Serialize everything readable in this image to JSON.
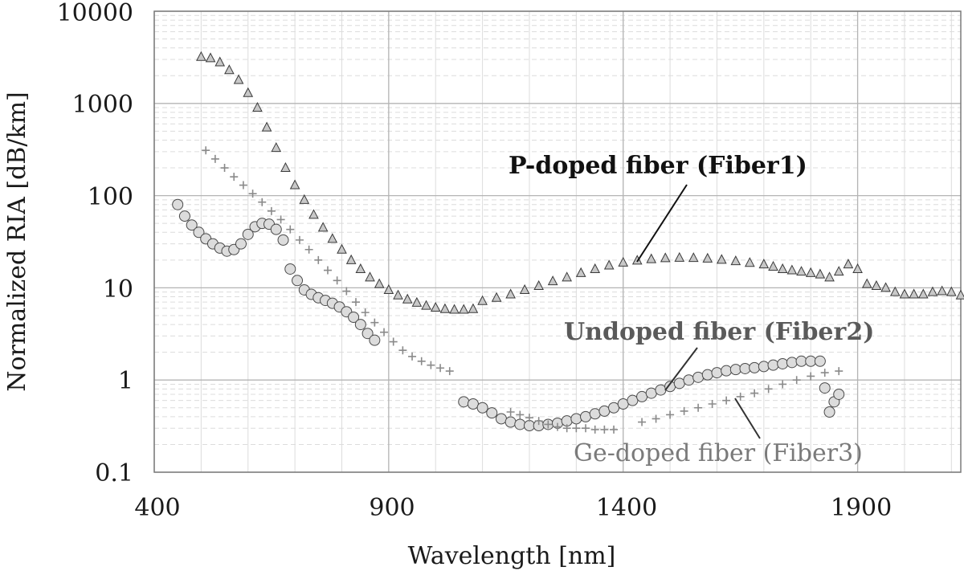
{
  "chart_data": {
    "type": "scatter",
    "title": "",
    "xlabel": "Wavelength [nm]",
    "ylabel": "Normalized RIA [dB/km]",
    "xlim": [
      400,
      2120
    ],
    "ylim": [
      0.1,
      10000
    ],
    "yscale": "log",
    "x_ticks": [
      "400",
      "900",
      "1400",
      "1900"
    ],
    "x_tick_values": [
      400,
      900,
      1400,
      1900
    ],
    "y_ticks": [
      "0.1",
      "1",
      "10",
      "100",
      "1000",
      "10000"
    ],
    "y_tick_values": [
      0.1,
      1,
      10,
      100,
      1000,
      10000
    ],
    "grid": true,
    "series": [
      {
        "name": "P-doped fiber (Fiber1)",
        "marker": "triangle",
        "segments": [
          {
            "x": [
              500,
              520,
              540,
              560,
              580,
              600,
              620,
              640,
              660,
              680,
              700,
              720,
              740,
              760,
              780,
              800,
              820,
              840,
              860,
              880,
              900,
              920,
              940,
              960,
              980,
              1000,
              1020,
              1040,
              1060,
              1080
            ],
            "y": [
              3200,
              3100,
              2800,
              2300,
              1800,
              1300,
              900,
              550,
              330,
              200,
              130,
              90,
              62,
              45,
              34,
              26,
              20,
              16,
              13,
              11,
              9.5,
              8.3,
              7.5,
              6.9,
              6.4,
              6.1,
              5.9,
              5.8,
              5.8,
              5.9
            ]
          },
          {
            "x": [
              1100,
              1130,
              1160,
              1190,
              1220,
              1250,
              1280,
              1310,
              1340,
              1370,
              1400,
              1430,
              1460,
              1490,
              1520,
              1550,
              1580,
              1610,
              1640,
              1670,
              1700
            ],
            "y": [
              7.2,
              7.8,
              8.5,
              9.5,
              10.5,
              11.8,
              13,
              14.5,
              16,
              17.5,
              18.8,
              19.8,
              20.5,
              21,
              21.2,
              21.1,
              20.8,
              20.2,
              19.5,
              18.7,
              18
            ]
          },
          {
            "x": [
              1720,
              1740,
              1760,
              1780,
              1800,
              1820,
              1840,
              1860,
              1880,
              1900,
              1920,
              1940,
              1960,
              1980,
              2000,
              2020,
              2040,
              2060,
              2080,
              2100,
              2120
            ],
            "y": [
              17,
              16,
              15.5,
              15,
              14.5,
              14,
              13,
              15,
              18,
              16,
              11,
              10.5,
              10,
              9,
              8.5,
              8.5,
              8.5,
              9,
              9.2,
              9,
              8.3
            ]
          }
        ]
      },
      {
        "name": "Undoped fiber (Fiber2)",
        "marker": "circle",
        "segments": [
          {
            "x": [
              450,
              465,
              480,
              495,
              510,
              525,
              540,
              555,
              570,
              585,
              600,
              615,
              630,
              645,
              660,
              675,
              690,
              705,
              720,
              735,
              750,
              765,
              780,
              795,
              810,
              825,
              840,
              855,
              870
            ],
            "y": [
              80,
              60,
              48,
              40,
              34,
              30,
              27,
              25,
              26,
              30,
              38,
              46,
              50,
              49,
              43,
              33,
              16,
              12,
              9.5,
              8.5,
              7.8,
              7.3,
              6.8,
              6.2,
              5.5,
              4.8,
              4.0,
              3.2,
              2.7
            ]
          },
          {
            "x": [
              1060,
              1080,
              1100,
              1120,
              1140,
              1160,
              1180,
              1200,
              1220,
              1240,
              1260,
              1280,
              1300,
              1320,
              1340,
              1360,
              1380,
              1400,
              1420,
              1440,
              1460,
              1480,
              1500,
              1520,
              1540,
              1560,
              1580,
              1600,
              1620,
              1640,
              1660,
              1680,
              1700,
              1720,
              1740,
              1760,
              1780,
              1800,
              1820
            ],
            "y": [
              0.58,
              0.55,
              0.5,
              0.44,
              0.38,
              0.35,
              0.33,
              0.32,
              0.32,
              0.33,
              0.34,
              0.36,
              0.38,
              0.4,
              0.43,
              0.46,
              0.5,
              0.55,
              0.6,
              0.66,
              0.72,
              0.78,
              0.85,
              0.92,
              1.0,
              1.07,
              1.14,
              1.2,
              1.26,
              1.3,
              1.33,
              1.36,
              1.4,
              1.45,
              1.5,
              1.55,
              1.6,
              1.6,
              1.6
            ]
          },
          {
            "x": [
              1830,
              1840,
              1850,
              1860
            ],
            "y": [
              0.82,
              0.45,
              0.58,
              0.7
            ]
          }
        ]
      },
      {
        "name": "Ge-doped fiber (Fiber3)",
        "marker": "plus",
        "segments": [
          {
            "x": [
              510,
              530,
              550,
              570,
              590,
              610,
              630,
              650,
              670,
              690,
              710,
              730,
              750,
              770,
              790,
              810,
              830,
              850,
              870,
              890,
              910,
              930,
              950,
              970,
              990,
              1010,
              1030
            ],
            "y": [
              310,
              250,
              200,
              160,
              130,
              105,
              85,
              68,
              55,
              43,
              33,
              26,
              20,
              15.5,
              12,
              9.2,
              7.0,
              5.4,
              4.2,
              3.3,
              2.6,
              2.1,
              1.8,
              1.6,
              1.45,
              1.35,
              1.25
            ]
          },
          {
            "x": [
              1160,
              1180,
              1200,
              1220,
              1240,
              1260,
              1280,
              1300,
              1320,
              1340,
              1360,
              1380
            ],
            "y": [
              0.45,
              0.42,
              0.39,
              0.36,
              0.33,
              0.31,
              0.3,
              0.3,
              0.3,
              0.29,
              0.29,
              0.29
            ]
          },
          {
            "x": [
              1440,
              1470,
              1500,
              1530,
              1560,
              1590,
              1620,
              1650,
              1680,
              1710,
              1740,
              1770,
              1800,
              1830,
              1860
            ],
            "y": [
              0.35,
              0.38,
              0.42,
              0.46,
              0.5,
              0.55,
              0.6,
              0.66,
              0.72,
              0.8,
              0.9,
              1.0,
              1.1,
              1.2,
              1.25
            ]
          }
        ]
      }
    ],
    "annotations": [
      {
        "text": "P-doped fiber (Fiber1)",
        "series": "P-doped fiber (Fiber1)"
      },
      {
        "text": "Undoped fiber (Fiber2)",
        "series": "Undoped fiber (Fiber2)"
      },
      {
        "text": "Ge-doped fiber (Fiber3)",
        "series": "Ge-doped fiber (Fiber3)"
      }
    ],
    "colors": {
      "triangle_fill": "#c8c8c8",
      "triangle_stroke": "#3a3a3a",
      "circle_fill": "#dcdcdc",
      "circle_stroke": "#4a4a4a",
      "plus_stroke": "#8a8a8a",
      "annotation_p": "#111111",
      "annotation_undoped": "#5a5a5a",
      "annotation_ge": "#7a7a7a",
      "grid_major": "#b4b4b4",
      "grid_minor": "#dcdcdc"
    }
  }
}
